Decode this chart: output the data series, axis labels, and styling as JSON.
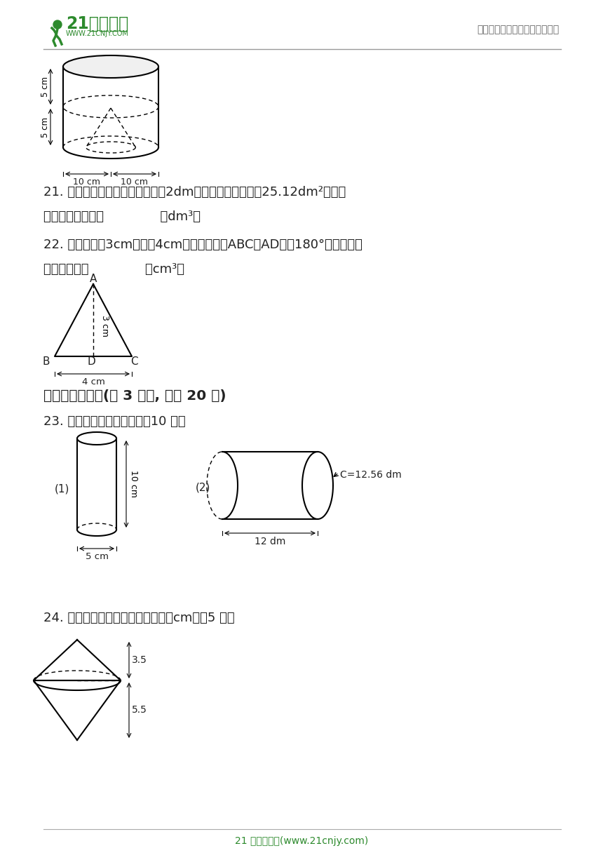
{
  "page_bg": "#ffffff",
  "header_right_text": "中小学教育资源及组卷应用平台",
  "footer_text": "21 世纪教育网(www.21cnjy.com)",
  "green_color": "#2d8a2d",
  "q21_text1": "21. 一个圆柱，如果把它的高截短2dm，它的表面积就减少25.12dm²，那么",
  "q21_text2": "它的体积会减少（              ）dm³。",
  "q22_text1": "22. 如图，高是3cm，底是4cm的等腰三角形ABC绕AD旋转180°形成一个圆",
  "q22_text2": "锥，体积为（              ）cm³。",
  "q23_label": "四、图形计算题(共 3 小题, 满分 20 分)",
  "q23_text": "23. 求下面圆柱的表面积。（10 分）",
  "q24_text": "24. 计算下面图形的体积。（单位：cm）（5 分）"
}
